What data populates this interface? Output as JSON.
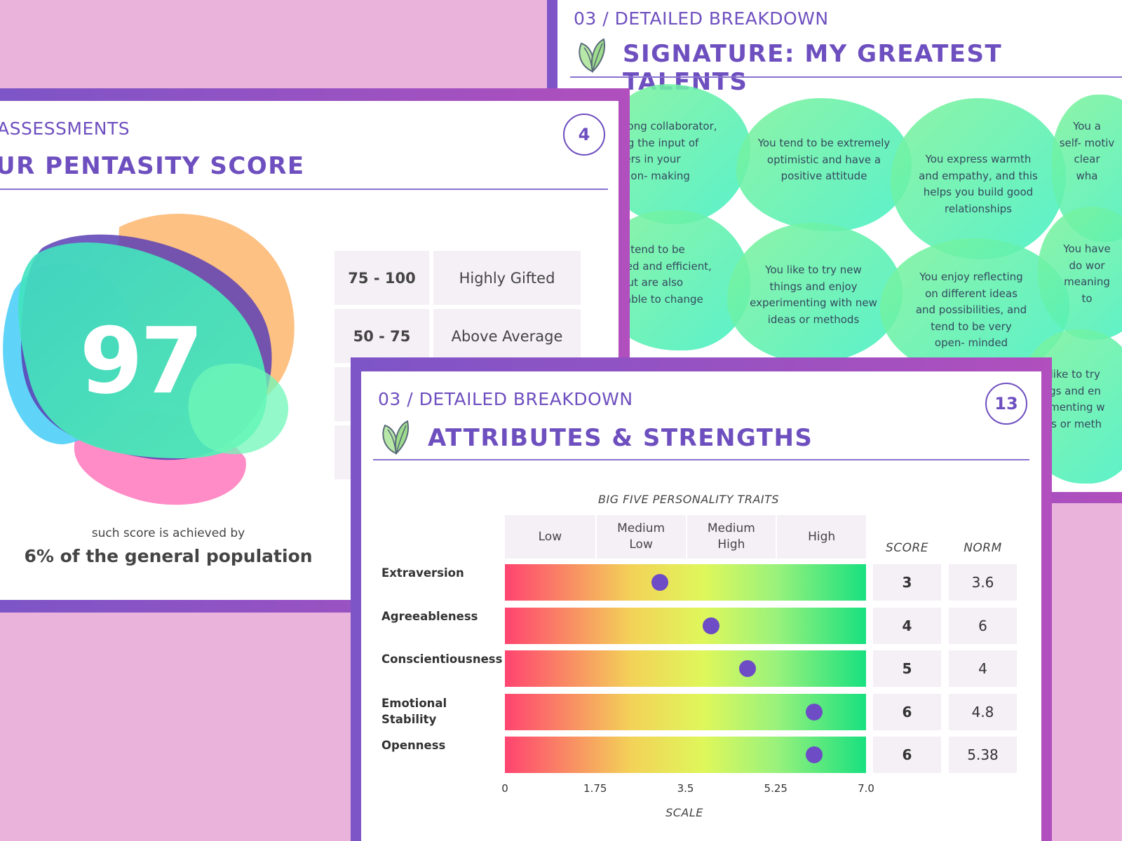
{
  "talents_card": {
    "section": "03 / DETAILED BREAKDOWN",
    "title": "SIGNATURE: MY GREATEST TALENTS",
    "icon": "leaf-icon",
    "talents": [
      "strong collaborator,\nring the input of\nthers in your\ncision- making",
      "You tend to be extremely\noptimistic and have a\npositive attitude",
      "You express warmth\nand empathy, and this\nhelps you build good\nrelationships",
      "You a\nself- motiv\nclear\nwha",
      "u tend to be\nsed and efficient,\nbut are also\ntable to change",
      "You like to try new\nthings and enjoy\nexperimenting with new\nideas or methods",
      "You enjoy reflecting\non different ideas\nand possibilities, and\ntend to be very\nopen- minded",
      "You have\ndo wor\nmeaning\nto",
      "You like to try\nthings and en\nperimenting w\nideas or meth"
    ]
  },
  "pentasity_card": {
    "section": "ASSESSMENTS",
    "title": "UR PENTASITY SCORE",
    "page_number": "4",
    "score": "97",
    "caption_small": "such score is achieved by",
    "caption_large": "6% of the general population",
    "ranges": [
      {
        "range": "75 - 100",
        "label": "Highly Gifted"
      },
      {
        "range": "50 - 75",
        "label": "Above Average"
      }
    ]
  },
  "attributes_card": {
    "section": "03 / DETAILED BREAKDOWN",
    "title": "ATTRIBUTES & STRENGTHS",
    "page_number": "13",
    "icon": "leaf-icon"
  },
  "chart_data": {
    "type": "table",
    "title": "BIG FIVE PERSONALITY TRAITS",
    "xlabel": "SCALE",
    "xlim": [
      0,
      7
    ],
    "ticks": [
      "0",
      "1.75",
      "3.5",
      "5.25",
      "7.0"
    ],
    "scale_bands": [
      "Low",
      "Medium\nLow",
      "Medium\nHigh",
      "High"
    ],
    "columns": [
      "SCORE",
      "NORM"
    ],
    "traits": [
      {
        "name": "Extraversion",
        "value": 3,
        "score": "3",
        "norm": "3.6"
      },
      {
        "name": "Agreeableness",
        "value": 4,
        "score": "4",
        "norm": "6"
      },
      {
        "name": "Conscientiousness",
        "value": 4.7,
        "score": "5",
        "norm": "4"
      },
      {
        "name": "Emotional\nStability",
        "value": 6,
        "score": "6",
        "norm": "4.8"
      },
      {
        "name": "Openness",
        "value": 6,
        "score": "6",
        "norm": "5.38"
      }
    ]
  },
  "colors": {
    "accent": "#6e4fbf",
    "background": "#e9b3dc",
    "dot": "#6d4cc6"
  }
}
